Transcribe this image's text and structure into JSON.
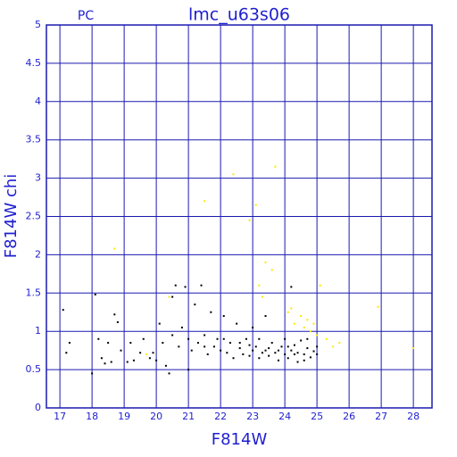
{
  "chart_data": {
    "type": "scatter",
    "title": "lmc_u63s06",
    "subtitle": "PC",
    "x_label": "F814W",
    "y_label": "F814W chi",
    "xlim": [
      16.58,
      28.58
    ],
    "ylim": [
      0,
      5
    ],
    "xticks": [
      17,
      18,
      19,
      20,
      21,
      22,
      23,
      24,
      25,
      26,
      27,
      28
    ],
    "yticks": [
      0,
      0.5,
      1,
      1.5,
      2,
      2.5,
      3,
      3.5,
      4,
      4.5,
      5
    ],
    "grid": true,
    "grid_color": "#1a1ab0",
    "series": [
      {
        "color": "#000000",
        "x": [
          17.1,
          17.2,
          17.3,
          18.0,
          18.1,
          18.2,
          18.3,
          18.4,
          18.5,
          18.6,
          18.7,
          18.8,
          18.9,
          19.1,
          19.2,
          19.3,
          19.5,
          19.6,
          19.8,
          19.9,
          20.0,
          20.1,
          20.2,
          20.3,
          20.4,
          20.5,
          20.5,
          20.6,
          20.7,
          20.8,
          20.9,
          21.0,
          21.0,
          21.1,
          21.2,
          21.3,
          21.4,
          21.5,
          21.6,
          21.7,
          21.8,
          21.9,
          22.0,
          22.1,
          22.2,
          22.3,
          22.4,
          22.5,
          22.6,
          22.7,
          22.8,
          22.9,
          23.0,
          23.0,
          23.1,
          23.2,
          23.3,
          23.4,
          23.5,
          23.5,
          23.6,
          23.7,
          23.8,
          23.9,
          24.0,
          24.0,
          24.1,
          24.2,
          24.2,
          24.3,
          24.4,
          24.4,
          24.5,
          24.6,
          24.6,
          24.7,
          24.8,
          24.9,
          25.0,
          25.0,
          22.1,
          22.6,
          23.2,
          23.8,
          24.3,
          24.7,
          21.5,
          22.9,
          23.4,
          24.1
        ],
        "values": [
          1.28,
          0.72,
          0.85,
          0.45,
          1.48,
          0.9,
          0.65,
          0.58,
          0.85,
          0.6,
          1.22,
          1.12,
          0.75,
          0.6,
          0.85,
          0.62,
          0.72,
          0.9,
          0.65,
          0.72,
          0.62,
          1.1,
          0.85,
          0.55,
          0.45,
          1.45,
          0.95,
          1.6,
          0.8,
          1.05,
          1.58,
          0.5,
          0.9,
          0.75,
          1.35,
          0.85,
          1.6,
          0.95,
          0.7,
          1.25,
          0.8,
          0.9,
          0.75,
          1.2,
          0.72,
          0.85,
          0.65,
          1.1,
          0.78,
          0.7,
          0.9,
          0.68,
          1.05,
          0.75,
          0.8,
          0.65,
          0.72,
          1.2,
          0.78,
          0.68,
          0.85,
          0.72,
          0.62,
          0.8,
          0.7,
          0.9,
          0.65,
          0.75,
          1.58,
          0.82,
          0.6,
          0.72,
          0.88,
          0.7,
          0.62,
          0.78,
          0.66,
          0.74,
          0.7,
          0.8,
          0.9,
          0.85,
          0.9,
          0.75,
          0.7,
          0.9,
          0.8,
          0.82,
          0.75,
          0.8
        ]
      },
      {
        "color": "#ffe600",
        "x": [
          20.4,
          21.5,
          22.4,
          22.9,
          23.1,
          23.4,
          23.6,
          23.7,
          23.2,
          23.3,
          24.1,
          24.3,
          24.5,
          24.6,
          24.7,
          24.8,
          24.9,
          25.0,
          25.1,
          25.3,
          25.5,
          25.7,
          26.9,
          18.7,
          28.0,
          19.7,
          24.2
        ],
        "values": [
          1.45,
          2.7,
          3.05,
          2.45,
          2.65,
          1.9,
          1.8,
          3.15,
          1.6,
          1.45,
          1.25,
          1.1,
          1.2,
          1.05,
          1.15,
          1.0,
          1.1,
          0.95,
          1.6,
          0.9,
          0.8,
          0.85,
          1.32,
          2.08,
          0.78,
          0.7,
          1.3
        ]
      }
    ]
  }
}
